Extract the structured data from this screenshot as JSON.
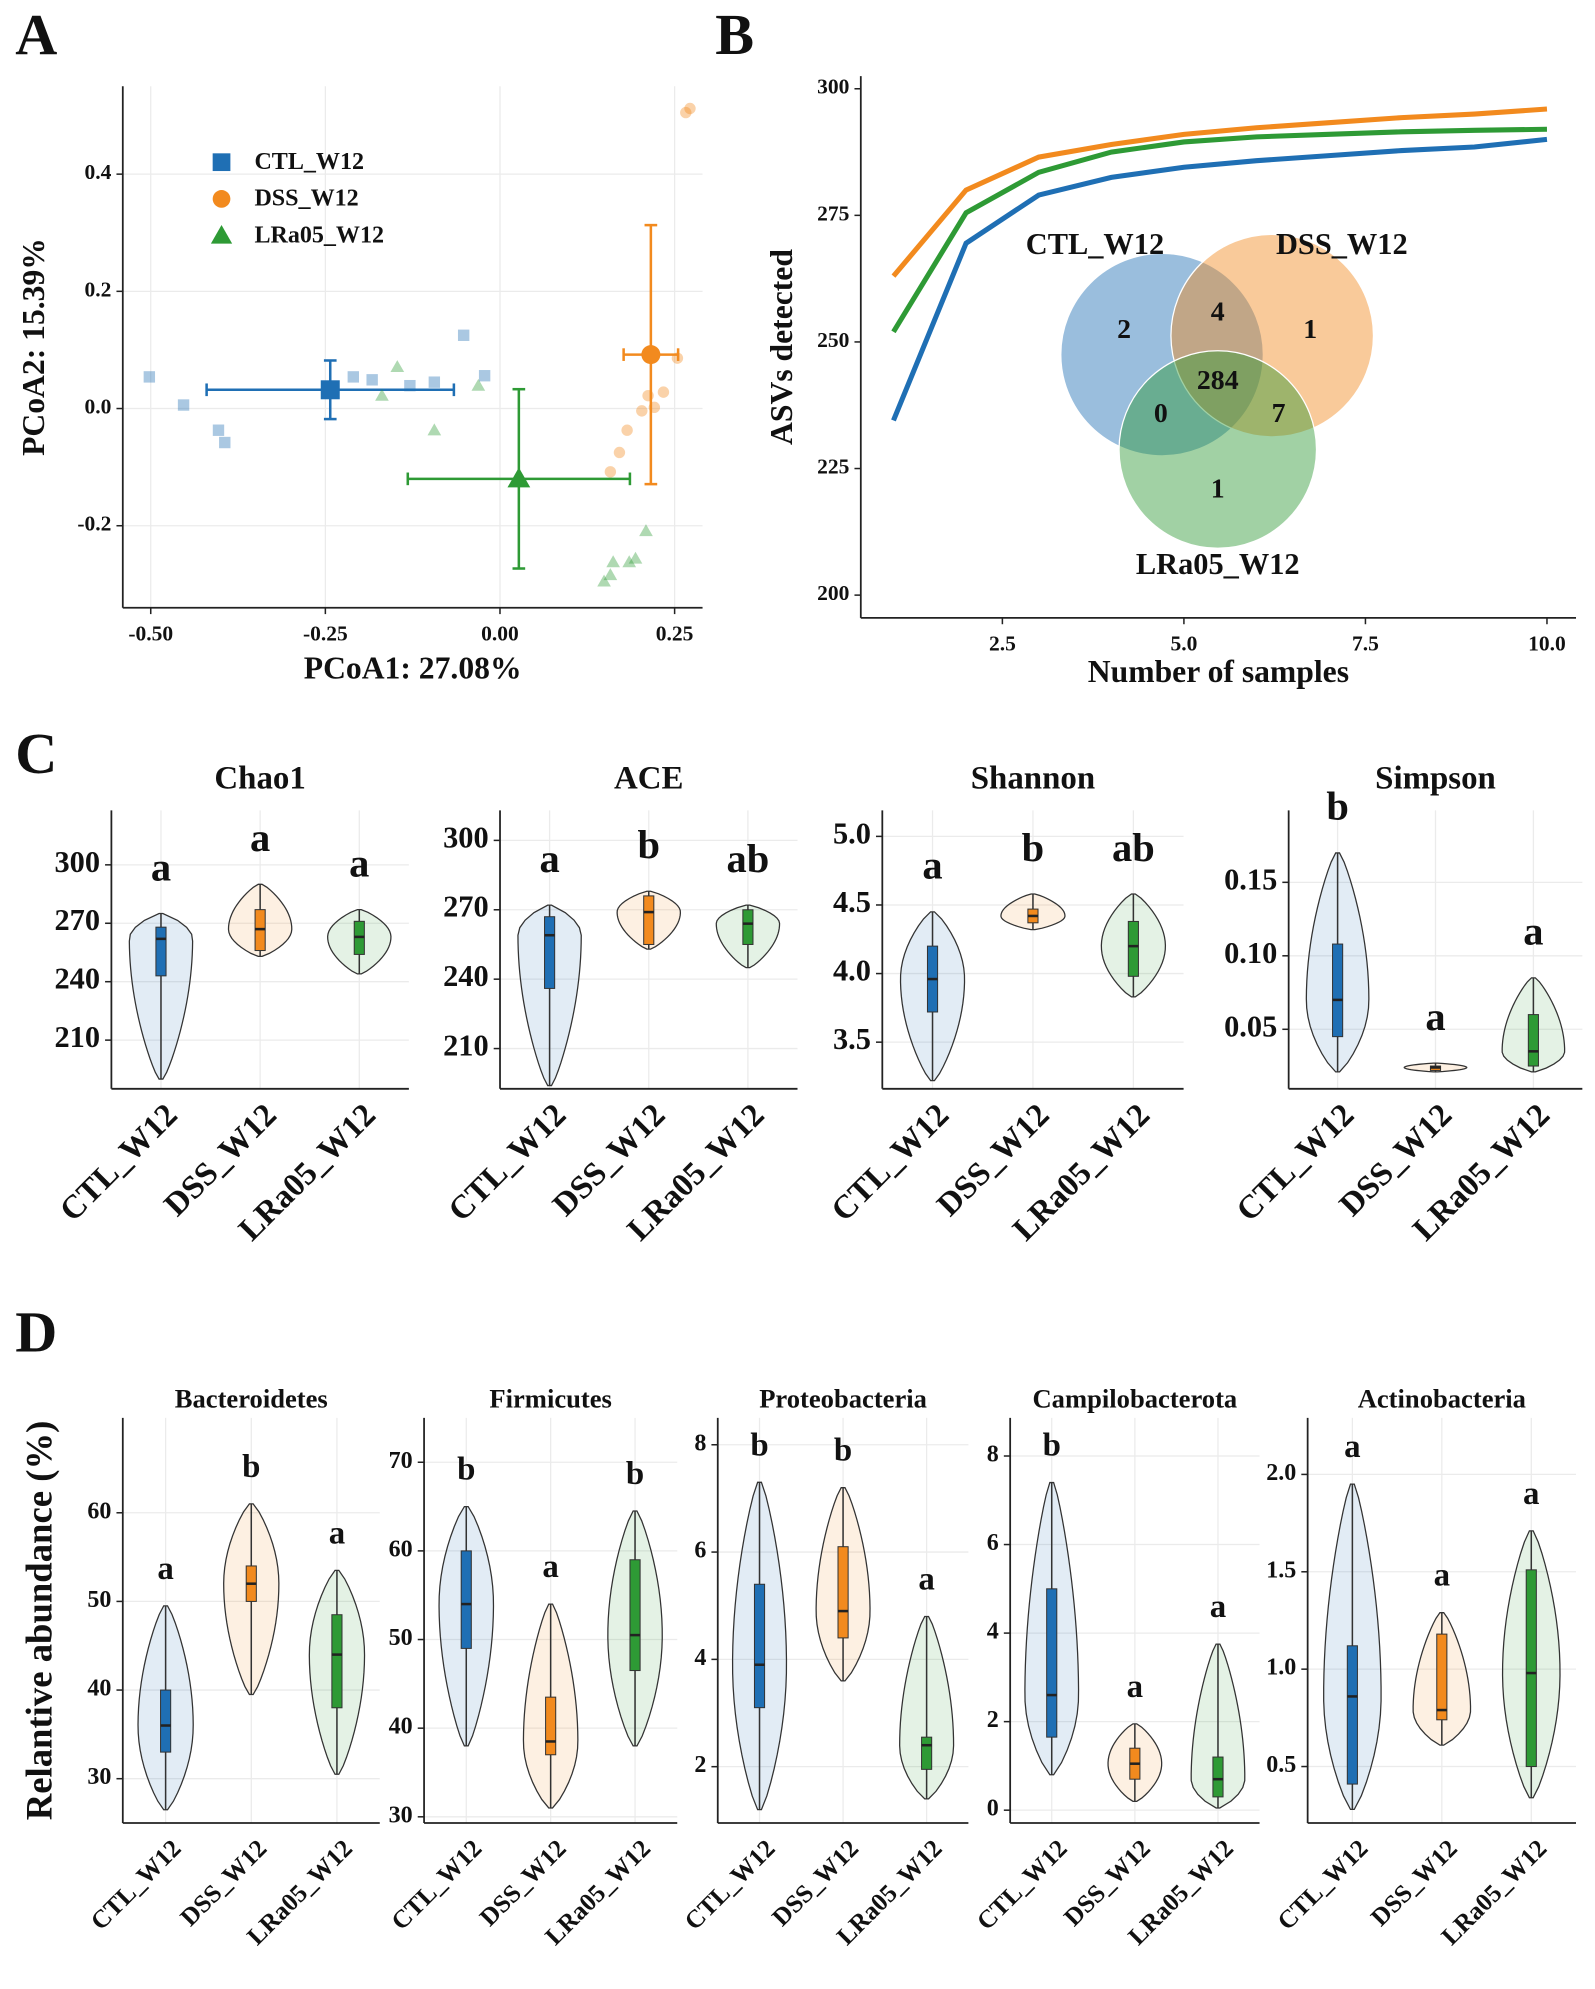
{
  "chart_data": [
    {
      "type": "scatter",
      "panel": "A",
      "xlabel": "PCoA1: 27.08%",
      "ylabel": "PCoA2: 15.39%",
      "xlim": [
        -0.54,
        0.29
      ],
      "xticks": [
        {
          "value": -0.5,
          "label": "-0.50"
        },
        -0.25,
        {
          "value": 0,
          "label": "0.00"
        },
        0.25
      ],
      "ylim": [
        -0.34,
        0.55
      ],
      "yticks": [
        0.4,
        0.2,
        {
          "value": 0,
          "label": "0.0"
        },
        -0.2
      ],
      "grid": true,
      "legend": "upper left",
      "series": [
        {
          "name": "CTL_W12",
          "color": "#1f6fb4",
          "marker": "square",
          "x": [
            -0.502,
            -0.453,
            -0.403,
            -0.394,
            -0.21,
            -0.183,
            -0.129,
            -0.094,
            -0.052,
            -0.022
          ],
          "y": [
            0.054,
            0.006,
            -0.037,
            -0.058,
            0.054,
            0.049,
            0.039,
            0.045,
            0.125,
            0.056
          ],
          "centroid": {
            "x": -0.243,
            "y": 0.032,
            "xerr": 0.177,
            "yerr": 0.05
          }
        },
        {
          "name": "DSS_W12",
          "color": "#f28a1e",
          "marker": "circle",
          "x": [
            0.266,
            0.272,
            0.158,
            0.171,
            0.182,
            0.203,
            0.212,
            0.221,
            0.234,
            0.254
          ],
          "y": [
            0.505,
            0.512,
            -0.108,
            -0.075,
            -0.037,
            -0.004,
            0.022,
            0.002,
            0.028,
            0.086
          ],
          "centroid": {
            "x": 0.216,
            "y": 0.092,
            "xerr": 0.039,
            "yerr": 0.221
          }
        },
        {
          "name": "LRa05_W12",
          "color": "#2e9a35",
          "marker": "triangle",
          "x": [
            -0.147,
            -0.169,
            -0.094,
            -0.031,
            0.149,
            0.162,
            0.185,
            0.209,
            0.158,
            0.194
          ],
          "y": [
            0.071,
            0.022,
            -0.037,
            0.039,
            -0.295,
            -0.262,
            -0.262,
            -0.209,
            -0.284,
            -0.256
          ],
          "centroid": {
            "x": 0.027,
            "y": -0.12,
            "xerr": 0.159,
            "yerr": 0.153
          }
        }
      ]
    },
    {
      "type": "line",
      "panel": "B",
      "xlabel": "Number of samples",
      "ylabel": "ASVs detected",
      "xlim": [
        0.55,
        10.4
      ],
      "xticks": [
        2.5,
        {
          "value": 5,
          "label": "5.0"
        },
        7.5,
        {
          "value": 10,
          "label": "10.0"
        }
      ],
      "ylim": [
        195.5,
        302.5
      ],
      "yticks": [
        300,
        275,
        250,
        225,
        200
      ],
      "x": [
        1,
        2,
        3,
        4,
        5,
        6,
        7,
        8,
        9,
        10
      ],
      "series": [
        {
          "name": "CTL_W12",
          "color": "#1f6fb4",
          "values": [
            234.5,
            269.5,
            279,
            282.5,
            284.5,
            285.8,
            286.8,
            287.8,
            288.5,
            290
          ]
        },
        {
          "name": "DSS_W12",
          "color": "#f28a1e",
          "values": [
            263,
            280,
            286.5,
            289,
            291,
            292.3,
            293.3,
            294.3,
            295,
            296
          ]
        },
        {
          "name": "LRa05_W12",
          "color": "#2e9a35",
          "values": [
            252,
            275.5,
            283.5,
            287.5,
            289.5,
            290.5,
            291,
            291.5,
            291.8,
            292
          ]
        }
      ],
      "venn_counts": [
        2,
        4,
        1,
        284,
        0,
        7,
        1
      ]
    },
    {
      "type": "violin",
      "panel": "C",
      "title": "Chao1",
      "categories": [
        "CTL_W12",
        "DSS_W12",
        "LRa05_W12"
      ],
      "colors": [
        "#1f6fb4",
        "#f28a1e",
        "#2e9a35"
      ],
      "ylim": [
        185,
        328
      ],
      "yticks": [
        300,
        270,
        240,
        210
      ],
      "stats": [
        [
          190,
          243,
          262,
          268,
          275
        ],
        [
          253,
          256,
          267,
          277,
          290
        ],
        [
          244,
          254,
          263,
          271,
          277
        ]
      ],
      "letters": [
        "a",
        "a",
        "a"
      ]
    },
    {
      "type": "violin",
      "title": "ACE",
      "categories": [
        "CTL_W12",
        "DSS_W12",
        "LRa05_W12"
      ],
      "colors": [
        "#1f6fb4",
        "#f28a1e",
        "#2e9a35"
      ],
      "ylim": [
        192.6,
        313
      ],
      "yticks": [
        300,
        270,
        240,
        210
      ],
      "stats": [
        [
          194,
          236,
          259,
          267,
          272
        ],
        [
          253,
          255,
          269,
          276,
          278
        ],
        [
          245,
          255,
          264,
          270,
          272
        ]
      ],
      "letters": [
        "a",
        "b",
        "ab"
      ]
    },
    {
      "type": "violin",
      "title": "Shannon",
      "categories": [
        "CTL_W12",
        "DSS_W12",
        "LRa05_W12"
      ],
      "colors": [
        "#1f6fb4",
        "#f28a1e",
        "#2e9a35"
      ],
      "ylim": [
        3.16,
        5.19
      ],
      "yticks": [
        {
          "value": 5,
          "label": "5.0"
        },
        4.5,
        {
          "value": 4,
          "label": "4.0"
        },
        3.5
      ],
      "stats": [
        [
          3.22,
          3.72,
          3.96,
          4.2,
          4.45
        ],
        [
          4.32,
          4.37,
          4.42,
          4.47,
          4.58
        ],
        [
          3.83,
          3.98,
          4.2,
          4.38,
          4.58
        ]
      ],
      "letters": [
        "a",
        "b",
        "ab"
      ]
    },
    {
      "type": "violin",
      "title": "Simpson",
      "categories": [
        "CTL_W12",
        "DSS_W12",
        "LRa05_W12"
      ],
      "colors": [
        "#1f6fb4",
        "#f28a1e",
        "#2e9a35"
      ],
      "ylim": [
        0.0095,
        0.199
      ],
      "yticks": [
        0.15,
        {
          "value": 0.1,
          "label": "0.10"
        },
        0.05
      ],
      "stats": [
        [
          0.021,
          0.045,
          0.07,
          0.108,
          0.17
        ],
        [
          0.021,
          0.022,
          0.024,
          0.025,
          0.027
        ],
        [
          0.021,
          0.025,
          0.035,
          0.06,
          0.085
        ]
      ],
      "letters": [
        "b",
        "a",
        "a"
      ]
    },
    {
      "type": "violin",
      "panel": "D",
      "ylabel": "Relantive abundance (%)",
      "title": "Bacteroidetes",
      "categories": [
        "CTL_W12",
        "DSS_W12",
        "LRa05_W12"
      ],
      "colors": [
        "#1f6fb4",
        "#f28a1e",
        "#2e9a35"
      ],
      "ylim": [
        25,
        70.7
      ],
      "yticks": [
        60,
        50,
        40,
        30
      ],
      "stats": [
        [
          26.5,
          33,
          36,
          40,
          49.5
        ],
        [
          39.5,
          50,
          52,
          54,
          61
        ],
        [
          30.5,
          38,
          44,
          48.5,
          53.5
        ]
      ],
      "letters": [
        "a",
        "b",
        "a"
      ]
    },
    {
      "type": "violin",
      "title": "Firmicutes",
      "categories": [
        "CTL_W12",
        "DSS_W12",
        "LRa05_W12"
      ],
      "colors": [
        "#1f6fb4",
        "#f28a1e",
        "#2e9a35"
      ],
      "ylim": [
        29.3,
        75
      ],
      "yticks": [
        70,
        60,
        50,
        40,
        30
      ],
      "stats": [
        [
          38,
          49,
          54,
          60,
          65
        ],
        [
          31,
          37,
          38.5,
          43.5,
          54
        ],
        [
          38,
          46.5,
          50.5,
          59,
          64.5
        ]
      ],
      "letters": [
        "b",
        "a",
        "b"
      ]
    },
    {
      "type": "violin",
      "title": "Proteobacteria",
      "categories": [
        "CTL_W12",
        "DSS_W12",
        "LRa05_W12"
      ],
      "colors": [
        "#1f6fb4",
        "#f28a1e",
        "#2e9a35"
      ],
      "ylim": [
        0.95,
        8.5
      ],
      "yticks": [
        8,
        6,
        4,
        2
      ],
      "stats": [
        [
          1.2,
          3.1,
          3.9,
          5.4,
          7.3
        ],
        [
          3.6,
          4.4,
          4.9,
          6.1,
          7.2
        ],
        [
          1.4,
          1.95,
          2.4,
          2.55,
          4.8
        ]
      ],
      "letters": [
        "b",
        "b",
        "a"
      ]
    },
    {
      "type": "violin",
      "title": "Campilobacterota",
      "categories": [
        "CTL_W12",
        "DSS_W12",
        "LRa05_W12"
      ],
      "colors": [
        "#1f6fb4",
        "#f28a1e",
        "#2e9a35"
      ],
      "ylim": [
        -0.29,
        8.86
      ],
      "yticks": [
        8,
        6,
        4,
        2,
        0
      ],
      "stats": [
        [
          0.8,
          1.65,
          2.6,
          5,
          7.4
        ],
        [
          0.2,
          0.7,
          1.05,
          1.4,
          1.95
        ],
        [
          0.05,
          0.3,
          0.7,
          1.2,
          3.75
        ]
      ],
      "letters": [
        "b",
        "a",
        "a"
      ]
    },
    {
      "type": "violin",
      "title": "Actinobacteria",
      "categories": [
        "CTL_W12",
        "DSS_W12",
        "LRa05_W12"
      ],
      "colors": [
        "#1f6fb4",
        "#f28a1e",
        "#2e9a35"
      ],
      "ylim": [
        0.21,
        2.29
      ],
      "yticks": [
        {
          "value": 2,
          "label": "2.0"
        },
        1.5,
        {
          "value": 1,
          "label": "1.0"
        },
        0.5
      ],
      "stats": [
        [
          0.28,
          0.41,
          0.86,
          1.12,
          1.95
        ],
        [
          0.61,
          0.74,
          0.79,
          1.18,
          1.29
        ],
        [
          0.34,
          0.5,
          0.98,
          1.51,
          1.71
        ]
      ],
      "letters": [
        "a",
        "a",
        "a"
      ]
    }
  ]
}
